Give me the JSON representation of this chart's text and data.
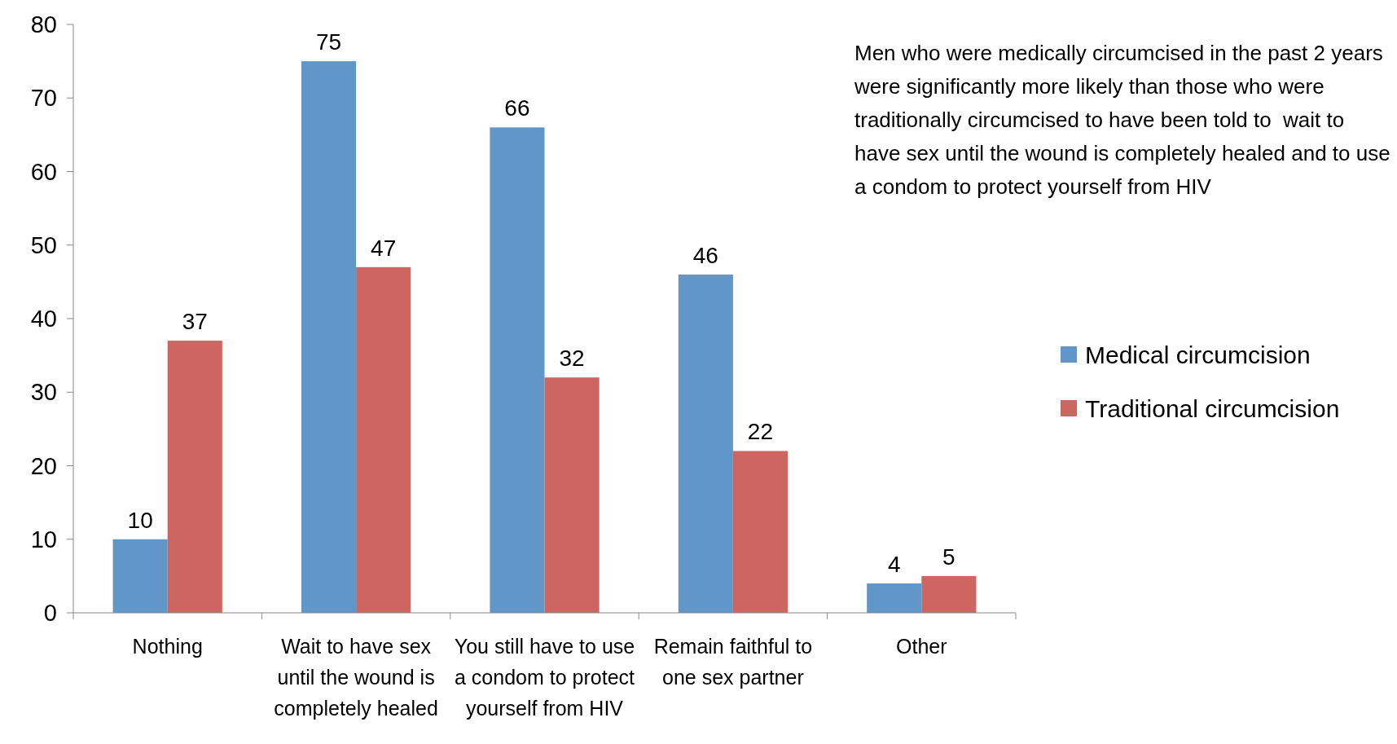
{
  "chart_data": {
    "type": "bar",
    "categories": [
      "Nothing",
      "Wait to have sex until the wound is completely healed",
      "You still have to use a condom to protect yourself from HIV",
      "Remain faithful to one sex partner",
      "Other"
    ],
    "series": [
      {
        "name": "Medical circumcision",
        "color": "#6096c8",
        "values": [
          10,
          75,
          66,
          46,
          4
        ]
      },
      {
        "name": "Traditional circumcision",
        "color": "#cd6660",
        "values": [
          37,
          47,
          32,
          22,
          5
        ]
      }
    ],
    "ylim": [
      0,
      80
    ],
    "yticks": [
      0,
      10,
      20,
      30,
      40,
      50,
      60,
      70,
      80
    ],
    "data_labels": true,
    "grid": false,
    "legend": "right",
    "annotations": [
      "Men who were medically circumcised in the past 2 years were significantly more likely than those who were traditionally circumcised to have been told to  wait to have sex until the wound is completely healed and to use a condom to protect yourself from HIV"
    ]
  }
}
